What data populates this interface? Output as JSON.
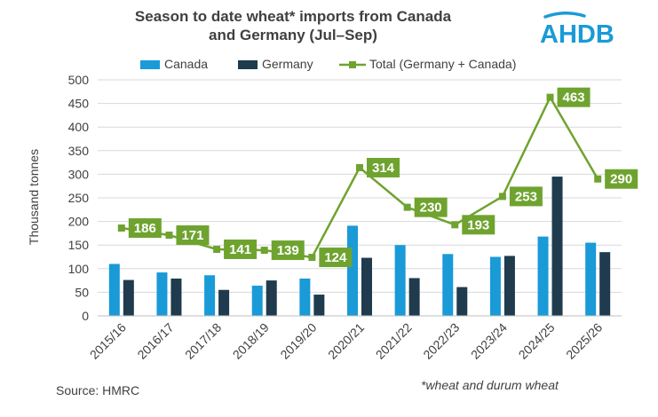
{
  "chart_data": {
    "type": "bar",
    "title": "Season to date wheat* imports from Canada and Germany (Jul–Sep)",
    "title_lines": [
      "Season to date wheat* imports from Canada",
      "and Germany (Jul–Sep)"
    ],
    "ylabel": "Thousand tonnes",
    "xlabel": "",
    "ylim": [
      0,
      500
    ],
    "yticks": [
      0,
      50,
      100,
      150,
      200,
      250,
      300,
      350,
      400,
      450,
      500
    ],
    "categories": [
      "2015/16",
      "2016/17",
      "2017/18",
      "2018/19",
      "2019/20",
      "2020/21",
      "2021/22",
      "2022/23",
      "2023/24",
      "2024/25",
      "2025/26"
    ],
    "series": [
      {
        "name": "Canada",
        "type": "bar",
        "color": "#1A9AD7",
        "values": [
          110,
          92,
          86,
          64,
          79,
          191,
          150,
          131,
          125,
          168,
          155
        ]
      },
      {
        "name": "Germany",
        "type": "bar",
        "color": "#1F3B4D",
        "values": [
          76,
          79,
          55,
          75,
          45,
          123,
          80,
          61,
          127,
          295,
          135
        ]
      },
      {
        "name": "Total (Germany + Canada)",
        "type": "line",
        "color": "#6FA32F",
        "values": [
          186,
          171,
          141,
          139,
          124,
          314,
          230,
          193,
          253,
          463,
          290
        ],
        "labels": [
          "186",
          "171",
          "141",
          "139",
          "124",
          "314",
          "230",
          "193",
          "253",
          "463",
          "290"
        ]
      }
    ],
    "legend_position": "top",
    "grid": true
  },
  "brand": {
    "logo_text": "AHDB",
    "color": "#1A9AD7"
  },
  "footer": {
    "source": "Source: HMRC",
    "note": "*wheat and durum wheat"
  }
}
